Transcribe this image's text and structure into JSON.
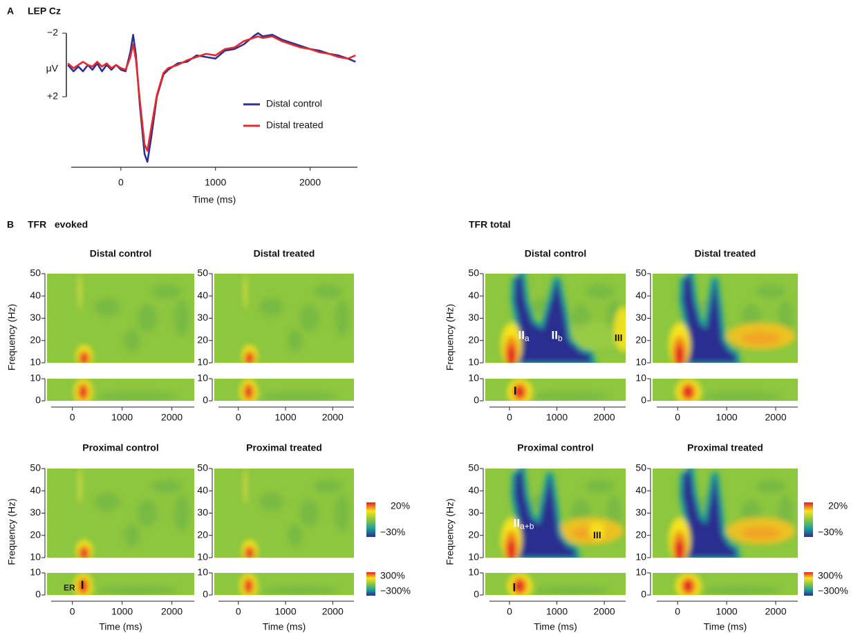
{
  "labels": {
    "b": "B",
    "evoked": "TFR   evoked",
    "total": "TFR total"
  },
  "colorbars": [
    {
      "top": "20%",
      "bottom": "−30%"
    },
    {
      "top": "300%",
      "bottom": "−300%"
    },
    {
      "top": "20%",
      "bottom": "−30%"
    },
    {
      "top": "300%",
      "bottom": "−300%"
    }
  ],
  "chart_data": [
    {
      "type": "line",
      "panel_label": "A",
      "title": "LEP Cz",
      "xlabel": "Time (ms)",
      "ylabel": "μV",
      "inverted": true,
      "xlim": [
        -525,
        2500
      ],
      "xticks": [
        0,
        1000,
        2000
      ],
      "ylim": [
        -2.3,
        6.3
      ],
      "yticks": [
        {
          "value": -2,
          "label": "−2"
        },
        {
          "value": 2,
          "label": "+2"
        }
      ],
      "x": [
        -560,
        -500,
        -450,
        -400,
        -350,
        -300,
        -250,
        -200,
        -150,
        -100,
        -50,
        0,
        50,
        100,
        130,
        160,
        200,
        250,
        280,
        320,
        380,
        450,
        500,
        600,
        700,
        800,
        900,
        1000,
        1100,
        1200,
        1300,
        1400,
        1450,
        1500,
        1600,
        1700,
        1800,
        1900,
        2000,
        2100,
        2200,
        2300,
        2400,
        2480
      ],
      "series": [
        {
          "name": "Distal control",
          "color": "#2e3192",
          "values": [
            0,
            0.4,
            0.1,
            0.4,
            0,
            0.3,
            -0.1,
            0.4,
            0,
            0.3,
            0,
            0.3,
            0.4,
            -0.8,
            -1.9,
            -0.6,
            2.5,
            5.6,
            6.1,
            4.6,
            2.0,
            0.6,
            0.3,
            -0.1,
            -0.2,
            -0.6,
            -0.5,
            -0.4,
            -0.9,
            -1.0,
            -1.3,
            -1.8,
            -2.0,
            -1.8,
            -1.9,
            -1.6,
            -1.4,
            -1.2,
            -1.0,
            -0.9,
            -0.7,
            -0.6,
            -0.4,
            -0.2
          ]
        },
        {
          "name": "Distal treated",
          "color": "#e8282b",
          "values": [
            -0.1,
            0.2,
            0,
            -0.2,
            0,
            0.1,
            -0.2,
            0.1,
            -0.1,
            0.2,
            0,
            0.2,
            0.3,
            -0.5,
            -1.3,
            -0.3,
            2.2,
            5.0,
            5.4,
            4.0,
            1.9,
            0.5,
            0.2,
            0,
            -0.3,
            -0.5,
            -0.7,
            -0.6,
            -1.0,
            -1.1,
            -1.5,
            -1.7,
            -1.8,
            -1.7,
            -1.8,
            -1.5,
            -1.3,
            -1.1,
            -1.0,
            -0.8,
            -0.7,
            -0.5,
            -0.4,
            -0.6
          ]
        }
      ]
    },
    {
      "type": "heatmap",
      "title": "Distal control",
      "ylabel": "Frequency (Hz)",
      "xlim": [
        -510,
        2450
      ],
      "xticks": [
        0,
        1000,
        2000
      ],
      "bands": [
        {
          "ylim": [
            10,
            50
          ],
          "yticks": [
            10,
            20,
            30,
            40,
            50
          ]
        },
        {
          "ylim": [
            0,
            10
          ],
          "yticks": [
            0,
            10
          ]
        }
      ],
      "annotations": []
    },
    {
      "type": "heatmap",
      "title": "Distal treated",
      "xlim": [
        -510,
        2450
      ],
      "xticks": [
        0,
        1000,
        2000
      ],
      "bands": [
        {
          "ylim": [
            10,
            50
          ],
          "yticks": [
            10,
            20,
            30,
            40,
            50
          ]
        },
        {
          "ylim": [
            0,
            10
          ],
          "yticks": [
            0,
            10
          ]
        }
      ],
      "annotations": []
    },
    {
      "type": "heatmap",
      "title": "Proximal control",
      "ylabel": "Frequency (Hz)",
      "xlabel": "Time (ms)",
      "xlim": [
        -510,
        2450
      ],
      "xticks": [
        0,
        1000,
        2000
      ],
      "bands": [
        {
          "ylim": [
            10,
            50
          ],
          "yticks": [
            10,
            20,
            30,
            40,
            50
          ]
        },
        {
          "ylim": [
            0,
            10
          ],
          "yticks": [
            0,
            10
          ]
        }
      ],
      "annotations": [
        {
          "text": "ER",
          "x": -60,
          "y": 3,
          "color": "#222"
        },
        {
          "text": "I",
          "x": 200,
          "y": 4,
          "color": "#111"
        }
      ]
    },
    {
      "type": "heatmap",
      "title": "Proximal treated",
      "xlabel": "Time (ms)",
      "xlim": [
        -510,
        2450
      ],
      "xticks": [
        0,
        1000,
        2000
      ],
      "bands": [
        {
          "ylim": [
            10,
            50
          ],
          "yticks": [
            10,
            20,
            30,
            40,
            50
          ]
        },
        {
          "ylim": [
            0,
            10
          ],
          "yticks": [
            0,
            10
          ]
        }
      ],
      "annotations": []
    },
    {
      "type": "heatmap",
      "title": "Distal control",
      "ylabel": "Frequency (Hz)",
      "xlim": [
        -510,
        2450
      ],
      "xticks": [
        0,
        1000,
        2000
      ],
      "bands": [
        {
          "ylim": [
            10,
            50
          ],
          "yticks": [
            10,
            20,
            30,
            40,
            50
          ]
        },
        {
          "ylim": [
            0,
            10
          ],
          "yticks": [
            0,
            10
          ]
        }
      ],
      "annotations": [
        {
          "text": "II",
          "sub": "a",
          "x": 300,
          "y": 22,
          "color": "#fff"
        },
        {
          "text": "II",
          "sub": "b",
          "x": 1000,
          "y": 22,
          "color": "#fff"
        },
        {
          "text": "III",
          "x": 2300,
          "y": 21,
          "color": "#111"
        },
        {
          "text": "I",
          "x": 120,
          "y": 4,
          "color": "#111"
        }
      ]
    },
    {
      "type": "heatmap",
      "title": "Distal treated",
      "xlim": [
        -510,
        2450
      ],
      "xticks": [
        0,
        1000,
        2000
      ],
      "bands": [
        {
          "ylim": [
            10,
            50
          ],
          "yticks": [
            10,
            20,
            30,
            40,
            50
          ]
        },
        {
          "ylim": [
            0,
            10
          ],
          "yticks": [
            0,
            10
          ]
        }
      ],
      "annotations": []
    },
    {
      "type": "heatmap",
      "title": "Proximal control",
      "ylabel": "Frequency (Hz)",
      "xlabel": "Time (ms)",
      "xlim": [
        -510,
        2450
      ],
      "xticks": [
        0,
        1000,
        2000
      ],
      "bands": [
        {
          "ylim": [
            10,
            50
          ],
          "yticks": [
            10,
            20,
            30,
            40,
            50
          ]
        },
        {
          "ylim": [
            0,
            10
          ],
          "yticks": [
            0,
            10
          ]
        }
      ],
      "annotations": [
        {
          "text": "II",
          "sub": "a+b",
          "x": 300,
          "y": 25,
          "color": "#fff"
        },
        {
          "text": "III",
          "x": 1850,
          "y": 20,
          "color": "#111"
        },
        {
          "text": "I",
          "x": 100,
          "y": 3,
          "color": "#111"
        }
      ]
    },
    {
      "type": "heatmap",
      "title": "Proximal treated",
      "xlabel": "Time (ms)",
      "xlim": [
        -510,
        2450
      ],
      "xticks": [
        0,
        1000,
        2000
      ],
      "bands": [
        {
          "ylim": [
            10,
            50
          ],
          "yticks": [
            10,
            20,
            30,
            40,
            50
          ]
        },
        {
          "ylim": [
            0,
            10
          ],
          "yticks": [
            0,
            10
          ]
        }
      ],
      "annotations": []
    }
  ]
}
